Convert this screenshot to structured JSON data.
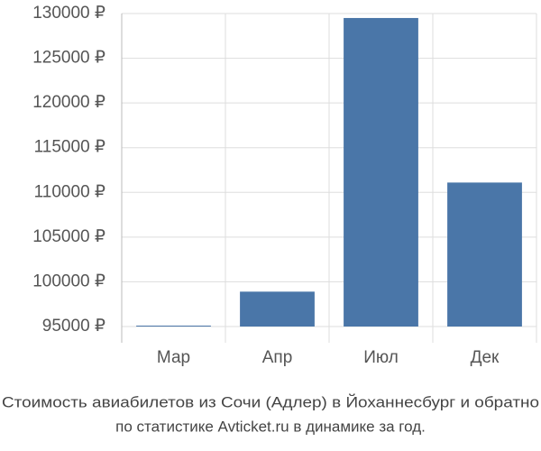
{
  "chart_data": {
    "type": "bar",
    "title": "Стоимость авиабилетов из Сочи (Адлер) в Йоханнесбург и обратно",
    "subtitle": "по статистике Avticket.ru в динамике за год.",
    "categories": [
      "Мар",
      "Апр",
      "Июл",
      "Дек"
    ],
    "values": [
      95100,
      98900,
      129500,
      111100
    ],
    "color": "#4a76a8",
    "ylim": [
      95000,
      130000
    ],
    "yticks": [
      {
        "value": 95000,
        "label": "95000 ₽"
      },
      {
        "value": 100000,
        "label": "100000 ₽"
      },
      {
        "value": 105000,
        "label": "105000 ₽"
      },
      {
        "value": 110000,
        "label": "110000 ₽"
      },
      {
        "value": 115000,
        "label": "115000 ₽"
      },
      {
        "value": 120000,
        "label": "120000 ₽"
      },
      {
        "value": 125000,
        "label": "125000 ₽"
      },
      {
        "value": 130000,
        "label": "130000 ₽"
      }
    ],
    "grid": true
  }
}
